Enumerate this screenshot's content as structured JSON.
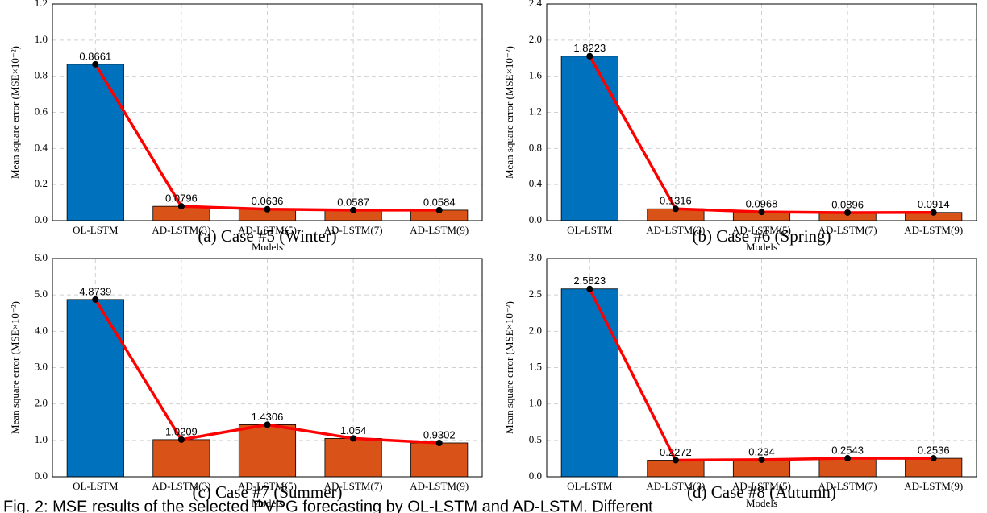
{
  "chart_data": [
    {
      "type": "bar",
      "subtitle": "(a) Case #5 (Winter)",
      "xlabel": "Models",
      "ylabel": "Mean square error (MSE×10⁻²)",
      "categories": [
        "OL-LSTM",
        "AD-LSTM(3)",
        "AD-LSTM(5)",
        "AD-LSTM(7)",
        "AD-LSTM(9)"
      ],
      "values": [
        0.8661,
        0.0796,
        0.0636,
        0.0587,
        0.0584
      ],
      "colors": [
        "#0072bd",
        "#d95319",
        "#d95319",
        "#d95319",
        "#d95319"
      ],
      "line_color": "#ff0000",
      "ylim": [
        0,
        1.2
      ],
      "yticks": [
        {
          "value": 0,
          "label": "0.0"
        },
        {
          "value": 0.2,
          "label": "0.2"
        },
        {
          "value": 0.4,
          "label": "0.4"
        },
        {
          "value": 0.6,
          "label": "0.6"
        },
        {
          "value": 0.8,
          "label": "0.8"
        },
        {
          "value": 1,
          "label": "1.0"
        },
        {
          "value": 1.2,
          "label": "1.2"
        }
      ],
      "grid": true
    },
    {
      "type": "bar",
      "subtitle": "(b) Case #6 (Spring)",
      "xlabel": "Models",
      "ylabel": "Mean square error (MSE×10⁻²)",
      "categories": [
        "OL-LSTM",
        "AD-LSTM(3)",
        "AD-LSTM(5)",
        "AD-LSTM(7)",
        "AD-LSTM(9)"
      ],
      "values": [
        1.8223,
        0.1316,
        0.0968,
        0.0896,
        0.0914
      ],
      "colors": [
        "#0072bd",
        "#d95319",
        "#d95319",
        "#d95319",
        "#d95319"
      ],
      "line_color": "#ff0000",
      "ylim": [
        0,
        2.4
      ],
      "yticks": [
        {
          "value": 0,
          "label": "0.0"
        },
        0.4,
        0.8,
        1.2,
        1.6,
        {
          "value": 2,
          "label": "2.0"
        },
        2.4
      ],
      "grid": true
    },
    {
      "type": "bar",
      "subtitle": "(c) Case #7 (Summer)",
      "xlabel": "Models",
      "ylabel": "Mean square error (MSE×10⁻²)",
      "categories": [
        "OL-LSTM",
        "AD-LSTM(3)",
        "AD-LSTM(5)",
        "AD-LSTM(7)",
        "AD-LSTM(9)"
      ],
      "values": [
        4.8739,
        1.0209,
        1.4306,
        1.054,
        0.9302
      ],
      "colors": [
        "#0072bd",
        "#d95319",
        "#d95319",
        "#d95319",
        "#d95319"
      ],
      "line_color": "#ff0000",
      "ylim": [
        0,
        6
      ],
      "yticks": [
        {
          "value": 0,
          "label": "0.0"
        },
        {
          "value": 1,
          "label": "1.0"
        },
        {
          "value": 2,
          "label": "2.0"
        },
        {
          "value": 3,
          "label": "3.0"
        },
        {
          "value": 4,
          "label": "4.0"
        },
        {
          "value": 5,
          "label": "5.0"
        },
        {
          "value": 6,
          "label": "6.0"
        }
      ],
      "grid": true
    },
    {
      "type": "bar",
      "subtitle": "(d) Case #8 (Autumn)",
      "xlabel": "Models",
      "ylabel": "Mean square error (MSE×10⁻²)",
      "categories": [
        "OL-LSTM",
        "AD-LSTM(3)",
        "AD-LSTM(5)",
        "AD-LSTM(7)",
        "AD-LSTM(9)"
      ],
      "values": [
        2.5823,
        0.2272,
        0.234,
        0.2543,
        0.2536
      ],
      "colors": [
        "#0072bd",
        "#d95319",
        "#d95319",
        "#d95319",
        "#d95319"
      ],
      "line_color": "#ff0000",
      "ylim": [
        0,
        3
      ],
      "yticks": [
        {
          "value": 0,
          "label": "0.0"
        },
        0.5,
        {
          "value": 1,
          "label": "1.0"
        },
        1.5,
        {
          "value": 2,
          "label": "2.0"
        },
        2.5,
        {
          "value": 3,
          "label": "3.0"
        }
      ],
      "grid": true
    }
  ],
  "caption": "Fig. 2: MSE results of the selected PVPG forecasting by OL-LSTM and AD-LSTM. Different"
}
